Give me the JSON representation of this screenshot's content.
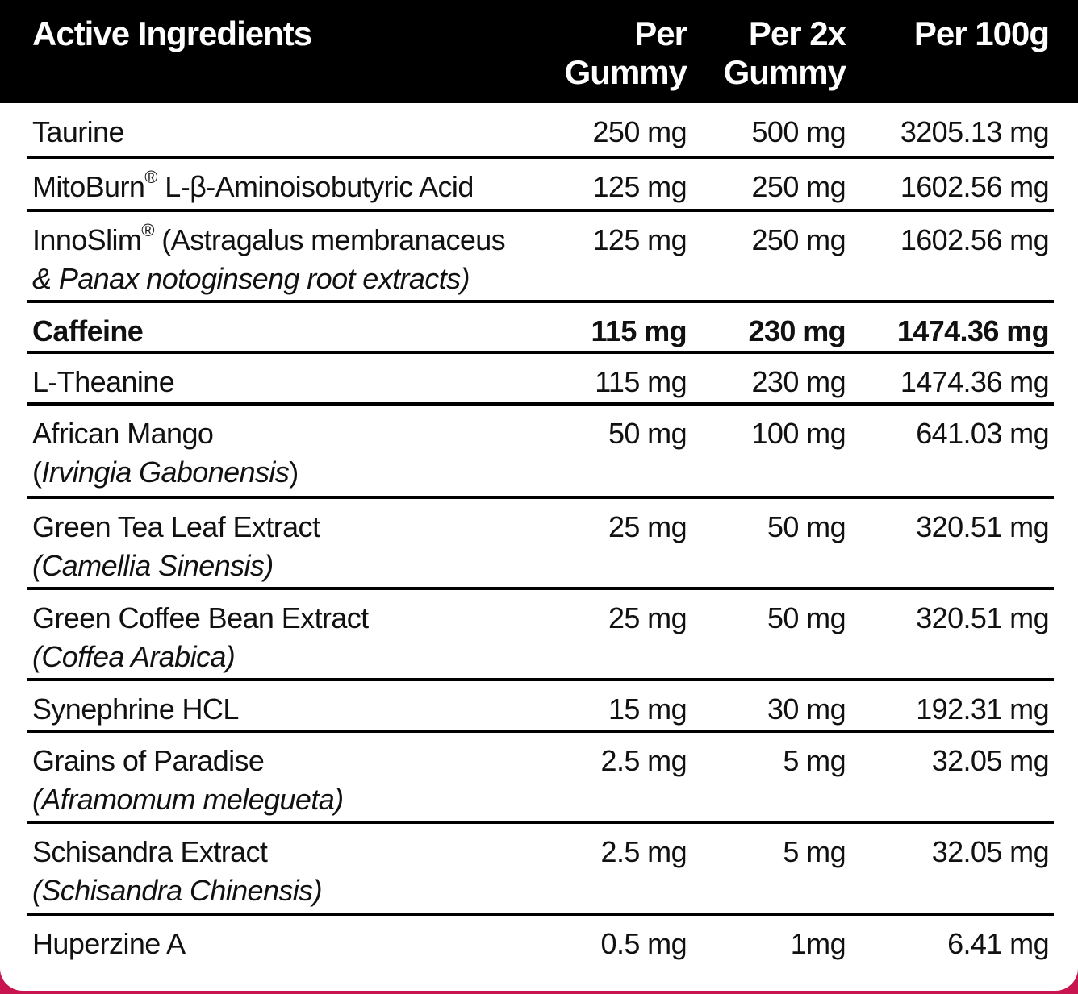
{
  "header": {
    "col_ingredient": "Active Ingredients",
    "col_per_gummy": [
      "Per",
      "Gummy"
    ],
    "col_per_2x": [
      "Per 2x",
      "Gummy"
    ],
    "col_per_100g": "Per 100g"
  },
  "rows": [
    {
      "name": "Taurine",
      "sub": "",
      "v1": "250 mg",
      "v2": "500 mg",
      "v3": "3205.13 mg",
      "bold": false
    },
    {
      "name": "MitoBurn® L-β-Aminoisobutyric Acid",
      "sub": "",
      "v1": "125 mg",
      "v2": "250 mg",
      "v3": "1602.56 mg",
      "bold": false
    },
    {
      "name": "InnoSlim® (Astragalus membranaceus",
      "sub": "& Panax notoginseng root extracts)",
      "v1": "125 mg",
      "v2": "250 mg",
      "v3": "1602.56 mg",
      "bold": false
    },
    {
      "name": "Caffeine",
      "sub": "",
      "v1": "115 mg",
      "v2": "230 mg",
      "v3": "1474.36 mg",
      "bold": true
    },
    {
      "name": "L-Theanine",
      "sub": "",
      "v1": "115 mg",
      "v2": "230 mg",
      "v3": "1474.36 mg",
      "bold": false
    },
    {
      "name": "African Mango",
      "sub": "(Irvingia Gabonensis)",
      "v1": "50 mg",
      "v2": "100 mg",
      "v3": "641.03 mg",
      "bold": false
    },
    {
      "name": "Green Tea Leaf Extract",
      "sub": "(Camellia Sinensis)",
      "v1": "25 mg",
      "v2": "50 mg",
      "v3": "320.51 mg",
      "bold": false
    },
    {
      "name": "Green Coffee Bean Extract",
      "sub": "(Coffea Arabica)",
      "v1": "25 mg",
      "v2": "50 mg",
      "v3": "320.51 mg",
      "bold": false
    },
    {
      "name": "Synephrine HCL",
      "sub": "",
      "v1": "15 mg",
      "v2": "30 mg",
      "v3": "192.31 mg",
      "bold": false
    },
    {
      "name": "Grains of Paradise",
      "sub": "(Aframomum melegueta)",
      "v1": "2.5 mg",
      "v2": "5 mg",
      "v3": "32.05 mg",
      "bold": false
    },
    {
      "name": "Schisandra Extract",
      "sub": "(Schisandra Chinensis)",
      "v1": "2.5 mg",
      "v2": "5 mg",
      "v3": "32.05 mg",
      "bold": false
    },
    {
      "name": "Huperzine A",
      "sub": "",
      "v1": "0.5 mg",
      "v2": "1mg",
      "v3": "6.41 mg",
      "bold": false
    }
  ]
}
